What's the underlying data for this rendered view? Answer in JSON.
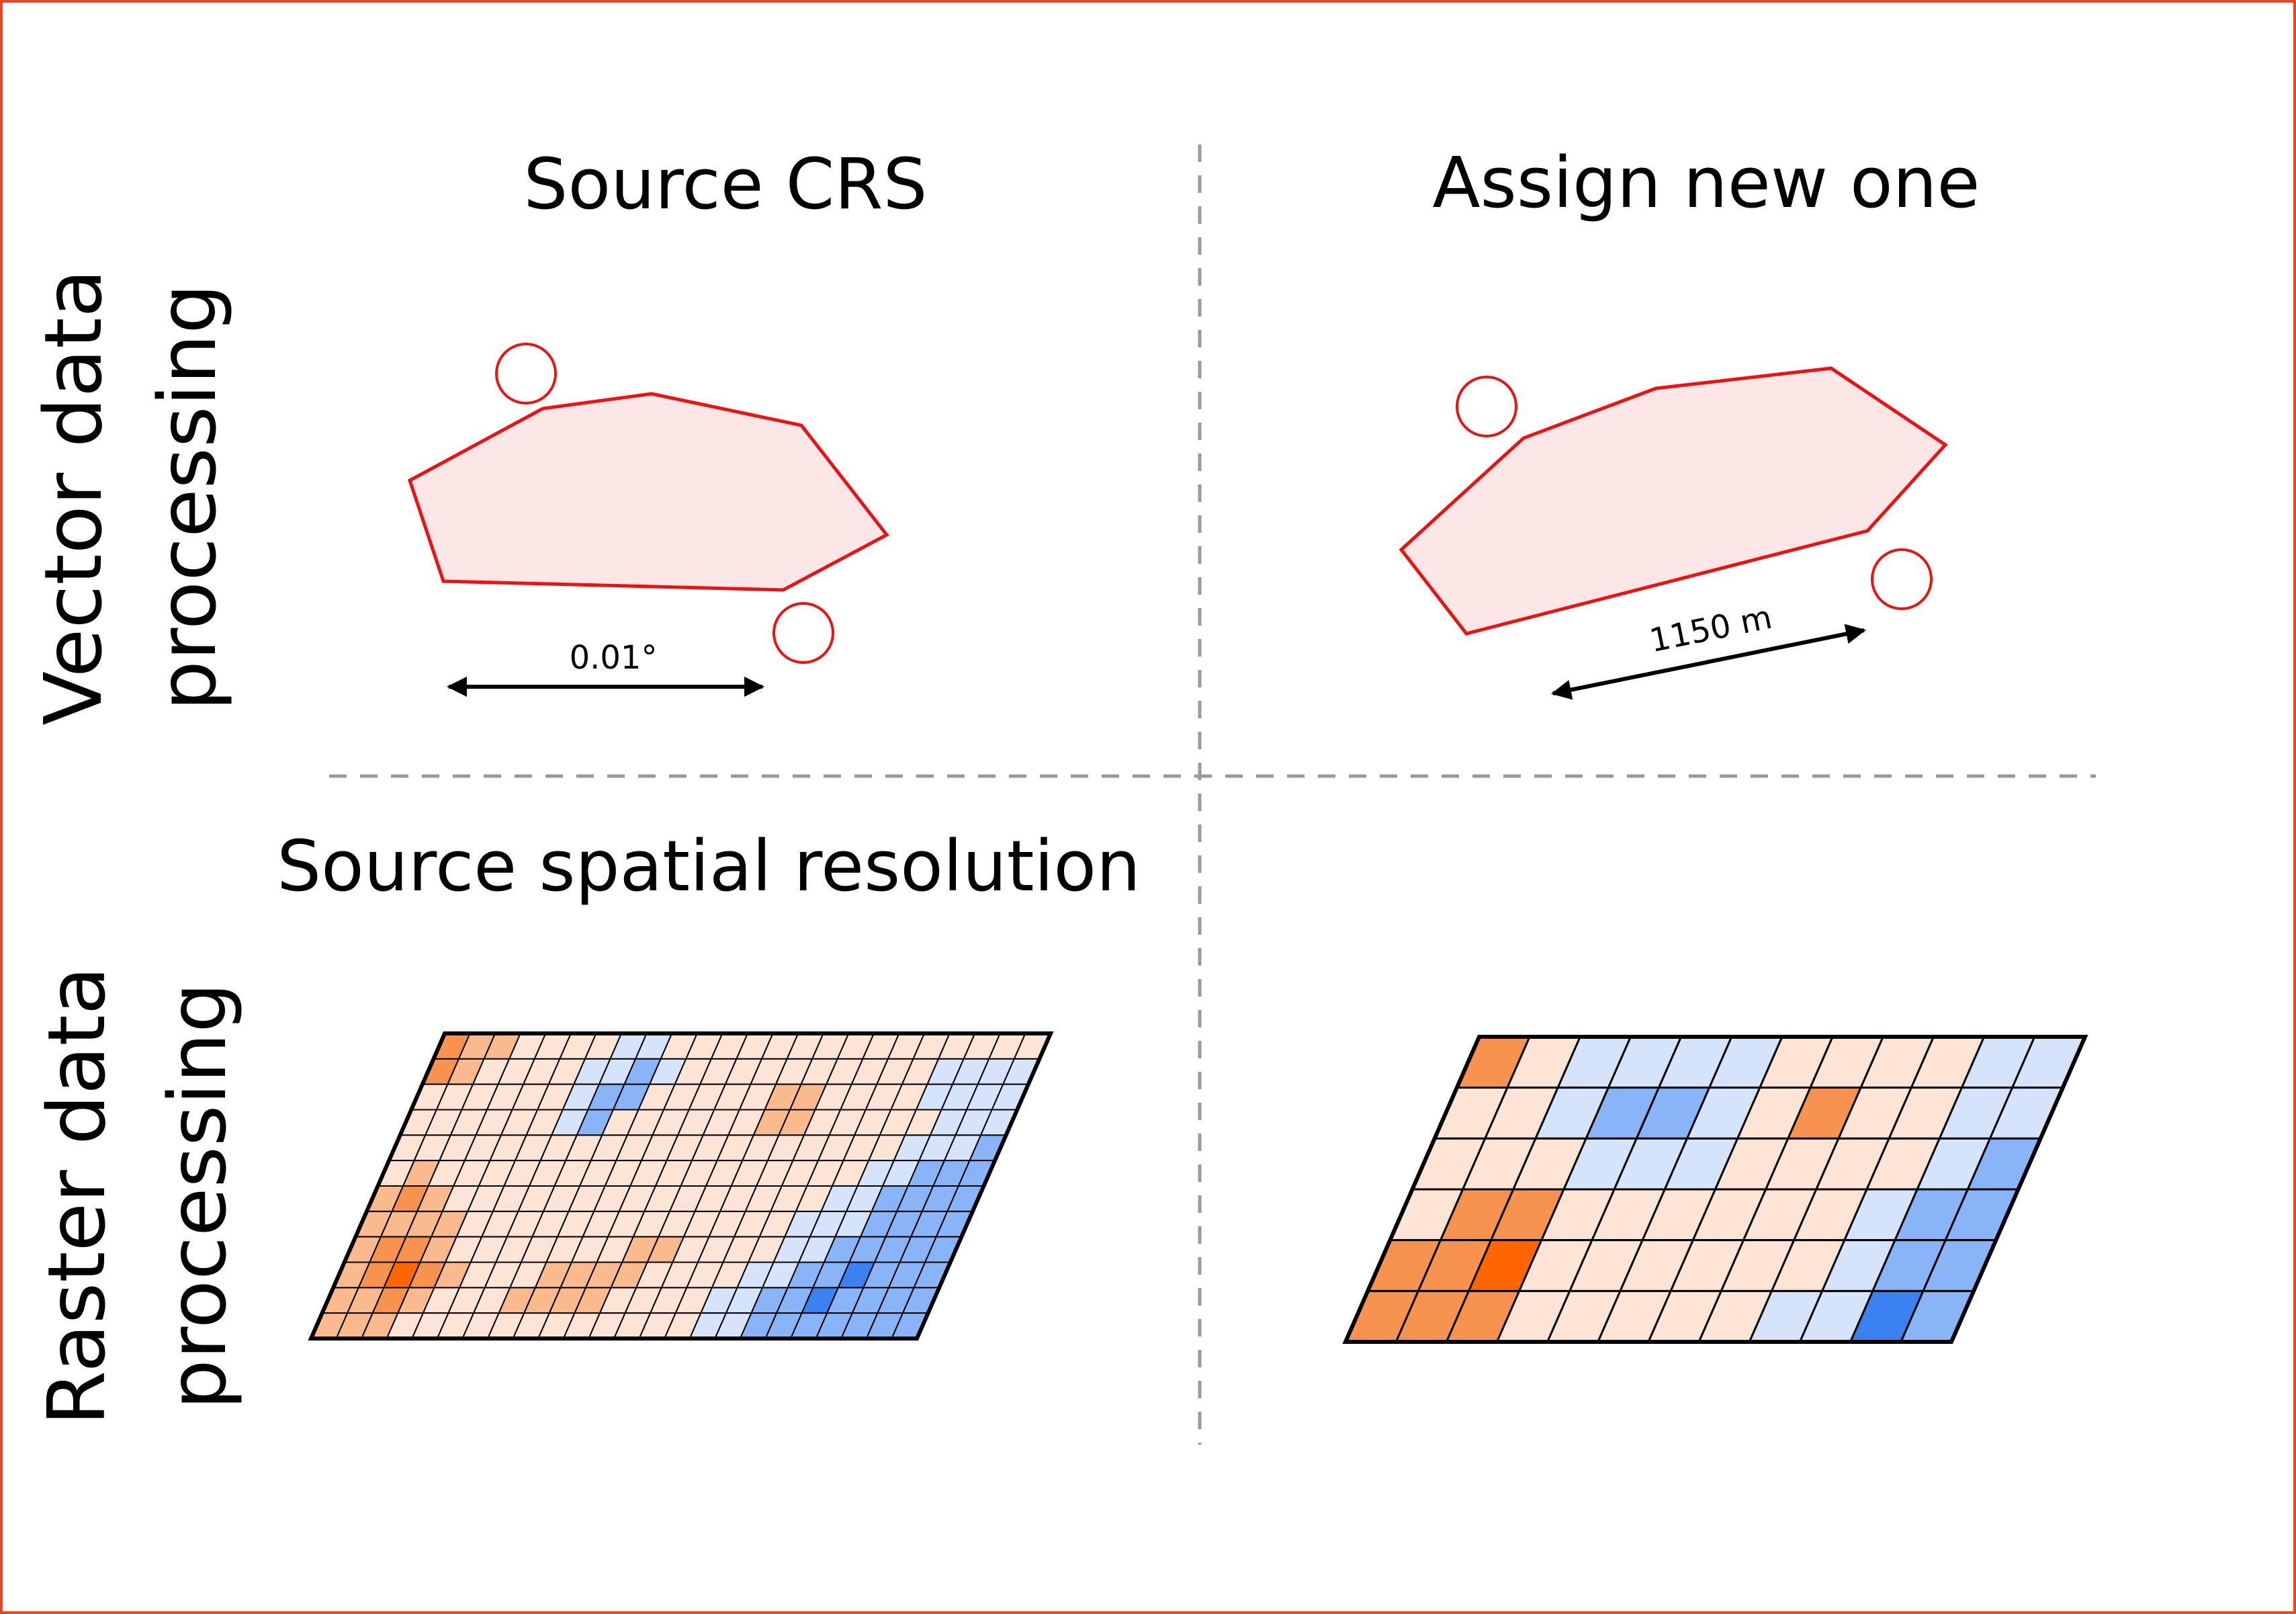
{
  "columns": {
    "left_title": "Source CRS",
    "right_title": "Assign new one"
  },
  "rows": {
    "vector_line1": "Vector data",
    "vector_line2": "processing",
    "raster_line1": "Raster data",
    "raster_line2": "processing"
  },
  "raster_left_title": "Source spatial resolution",
  "vector_left": {
    "measure_label": "0.01°"
  },
  "vector_right": {
    "measure_label": "1150 m"
  },
  "colors": {
    "frame": "#ee4422",
    "polygon_stroke": "#ee1111",
    "polygon_fill": "#fde6e6",
    "divider": "#999999",
    "raster_palette": [
      "#fde4d4",
      "#fbb98e",
      "#f7924f",
      "#ff6600",
      "#d5e4fb",
      "#8ab4f8",
      "#3b82f0"
    ]
  },
  "raster_fine": {
    "rows": 12,
    "cols": 24,
    "cells": [
      "211000044000000000000000",
      "210000445400000000004444",
      "000000455000001100004444",
      "000000450000001100000444",
      "000000000000000000004445",
      "010000000000000000044555",
      "121000000000000000445555",
      "111100000000000004445555",
      "122100000001100004455555",
      "123210001111000044556555",
      "112100011110000445565555",
      "111000000000000445555555"
    ]
  },
  "raster_coarse": {
    "rows": 6,
    "cols": 12,
    "cells": [
      "204444000044",
      "004554020044",
      "000444000045",
      "022000000455",
      "223000000455",
      "222000004465"
    ]
  }
}
